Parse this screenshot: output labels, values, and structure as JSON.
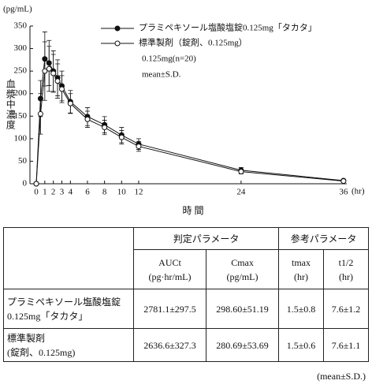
{
  "chart_data": {
    "type": "line",
    "y_unit": "(pg/mL)",
    "ylabel": "血漿中濃度",
    "xlabel": "時 間",
    "x_unit": "(hr)",
    "x": [
      0,
      0.5,
      1,
      1.5,
      2,
      2.5,
      3,
      4,
      6,
      8,
      10,
      12,
      24,
      36
    ],
    "series": [
      {
        "name": "プラミペキソール塩酸塩錠0.125mg「タカタ」",
        "color": "#111111",
        "marker": "filled",
        "values": [
          0,
          189,
          277,
          268,
          250,
          235,
          217,
          182,
          149,
          131,
          108,
          88,
          30,
          7
        ],
        "errors": [
          0,
          40,
          60,
          50,
          45,
          40,
          33,
          25,
          20,
          18,
          17,
          12,
          6,
          3
        ]
      },
      {
        "name": "標準製剤（錠剤、0.125mg）",
        "color": "#111111",
        "marker": "open",
        "values": [
          0,
          155,
          250,
          255,
          245,
          228,
          210,
          178,
          143,
          125,
          103,
          83,
          27,
          6
        ],
        "errors": [
          0,
          45,
          65,
          50,
          42,
          38,
          30,
          22,
          18,
          16,
          15,
          11,
          5,
          3
        ]
      }
    ],
    "annotations": [
      "0.125mg(n=20)",
      "mean±S.D."
    ],
    "xlim": [
      -0.74,
      36.2
    ],
    "xticks": [
      0,
      1,
      2,
      3,
      4,
      6,
      8,
      10,
      12,
      24,
      36
    ],
    "ylim": [
      0,
      350
    ],
    "yticks": [
      0,
      50,
      100,
      150,
      200,
      250,
      300,
      350
    ],
    "grid": false
  },
  "table": {
    "groups": [
      "判定パラメータ",
      "参考パラメータ"
    ],
    "columns": [
      [
        "AUCt",
        "(pg·hr/mL)"
      ],
      [
        "Cmax",
        "(pg/mL)"
      ],
      [
        "tmax",
        "(hr)"
      ],
      [
        "t1/2",
        "(hr)"
      ]
    ],
    "rows": [
      {
        "label": [
          "プラミペキソール塩酸塩錠",
          "0.125mg「タカタ」"
        ],
        "cells": [
          "2781.1±297.5",
          "298.60±51.19",
          "1.5±0.8",
          "7.6±1.2"
        ]
      },
      {
        "label": [
          "標準製剤",
          "(錠剤、0.125mg)"
        ],
        "cells": [
          "2636.6±327.3",
          "280.69±53.69",
          "1.5±0.6",
          "7.6±1.1"
        ]
      }
    ],
    "note": "(mean±S.D.)"
  }
}
